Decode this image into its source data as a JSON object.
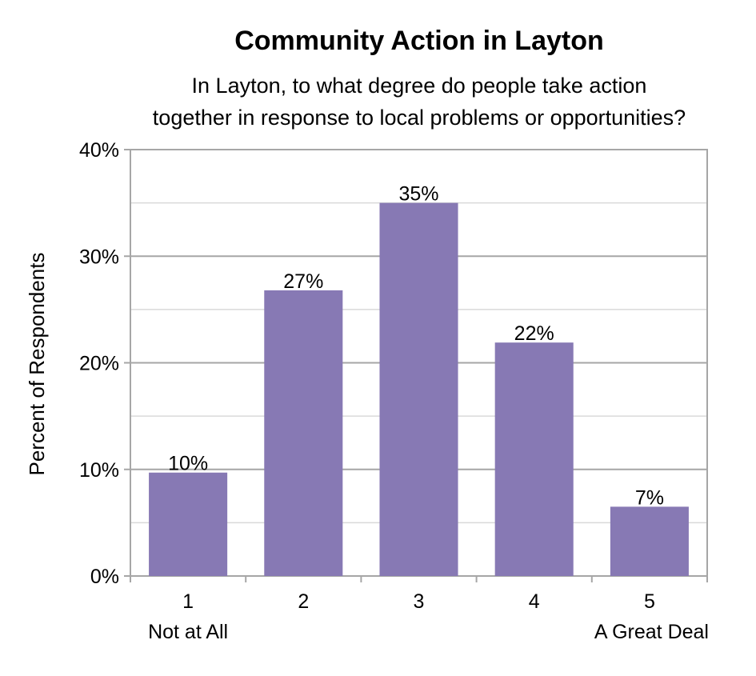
{
  "chart_data": {
    "type": "bar",
    "title": "Community Action in Layton",
    "subtitle_lines": [
      "In Layton, to what degree do people take action",
      "together in response to local problems or opportunities?"
    ],
    "categories": [
      "1",
      "2",
      "3",
      "4",
      "5"
    ],
    "category_sublabels": [
      "Not at All",
      "",
      "",
      "",
      "A Great Deal"
    ],
    "values": [
      9.7,
      26.8,
      35.0,
      21.9,
      6.5
    ],
    "data_labels": [
      "10%",
      "27%",
      "35%",
      "22%",
      "7%"
    ],
    "xlabel": "",
    "ylabel": "Percent of Respondents",
    "ylim": [
      0,
      40
    ],
    "y_ticks": [
      0,
      10,
      20,
      30,
      40
    ],
    "y_tick_labels": [
      "0%",
      "10%",
      "20%",
      "30%",
      "40%"
    ],
    "grid": true,
    "legend": "none",
    "colors": {
      "bar": "#8779b4",
      "major_grid": "#a6a6a6",
      "minor_grid": "#d9d9d9",
      "frame": "#a6a6a6"
    }
  }
}
